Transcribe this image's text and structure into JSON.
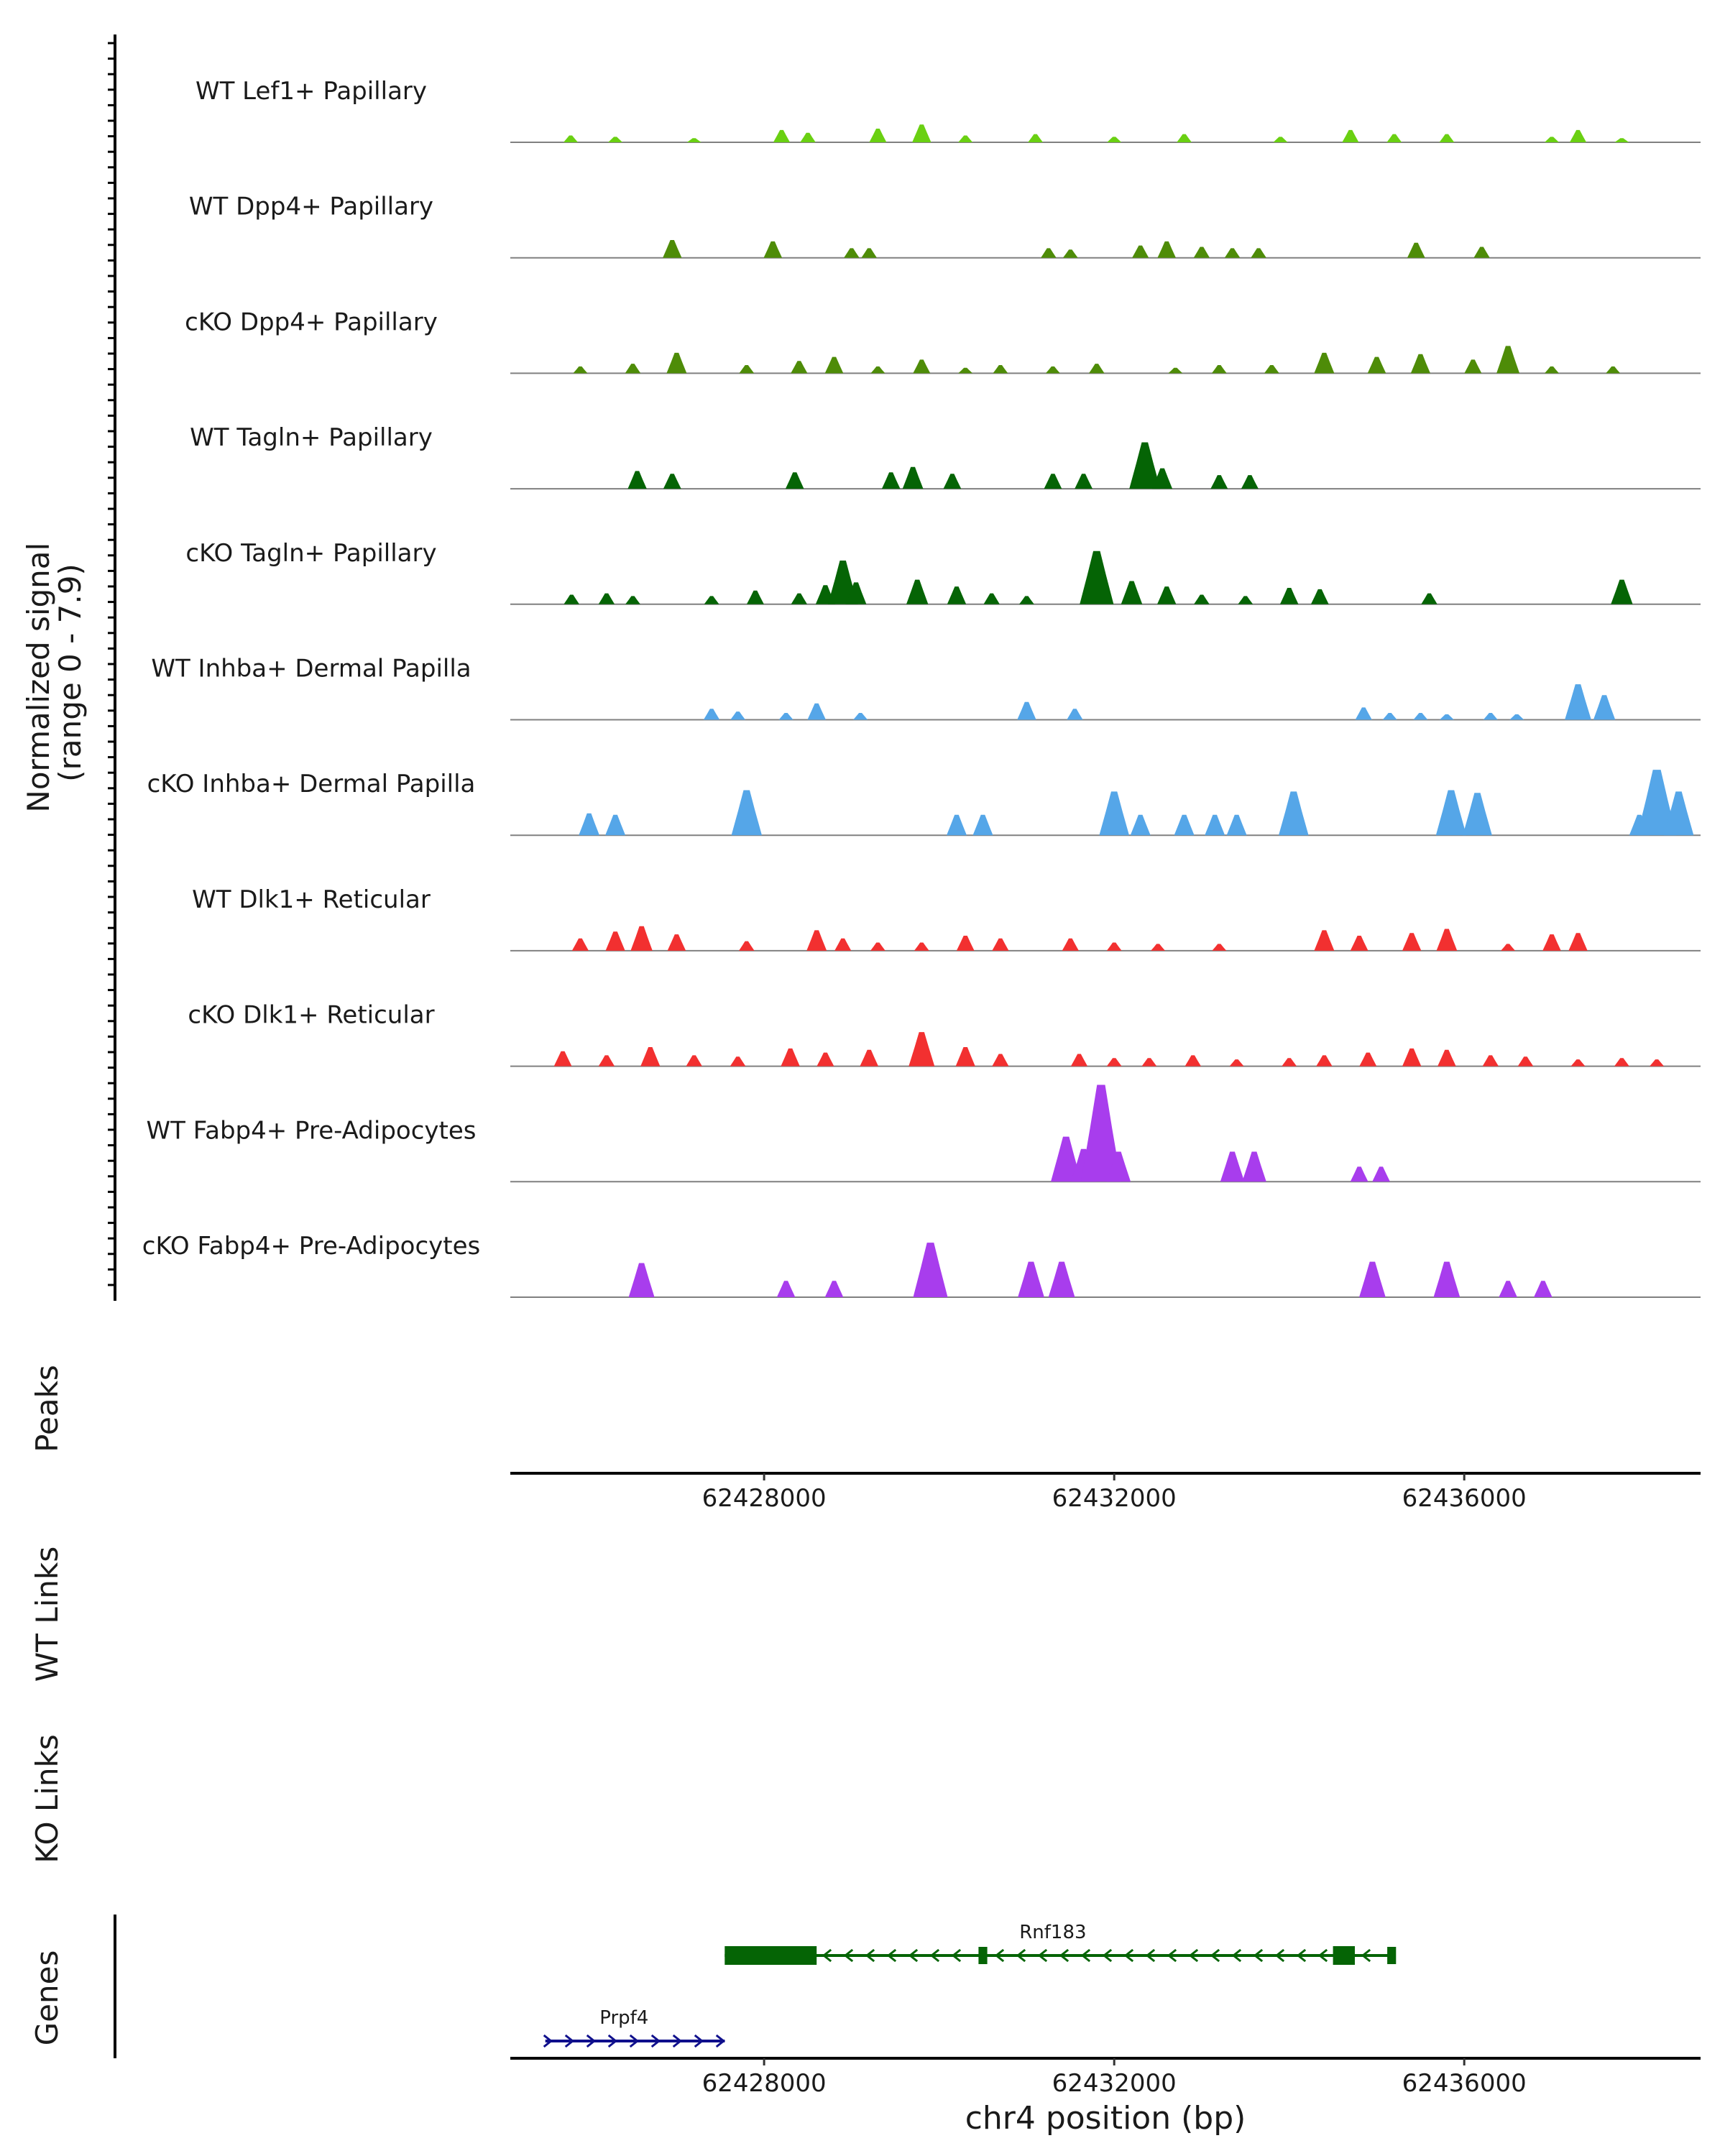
{
  "chart_data": {
    "type": "area",
    "title": "",
    "ylabel": "Normalized signal\n(range 0 - 7.9)",
    "ylabel_lines": [
      "Normalized signal",
      "(range 0 - 7.9)"
    ],
    "ylim": [
      0,
      7.9
    ],
    "xlabel": "chr4 position (bp)",
    "xlim": [
      62425100,
      62438700
    ],
    "x_ticks": [
      62428000,
      62432000,
      62436000
    ],
    "x_tick_labels": [
      "62428000",
      "62432000",
      "62436000"
    ],
    "colors": {
      "lef1": "#6ad012",
      "dpp4": "#4e8c08",
      "tagln": "#056405",
      "inhba": "#55a6e8",
      "dlk1": "#f23030",
      "fabp4": "#a83ded",
      "rnf183": "#056405",
      "prpf4": "#0f0f8c",
      "baseline": "#808080",
      "axis": "#000000"
    },
    "tracks": [
      {
        "label": "WT Lef1+ Papillary",
        "color": "#6ad012",
        "peaks": [
          [
            62425790,
            0.5
          ],
          [
            62426300,
            0.4
          ],
          [
            62427200,
            0.3
          ],
          [
            62428200,
            0.9
          ],
          [
            62428500,
            0.7
          ],
          [
            62429300,
            1.0
          ],
          [
            62429800,
            1.3
          ],
          [
            62430300,
            0.5
          ],
          [
            62431100,
            0.6
          ],
          [
            62432000,
            0.4
          ],
          [
            62432800,
            0.6
          ],
          [
            62433900,
            0.4
          ],
          [
            62434700,
            0.9
          ],
          [
            62435200,
            0.6
          ],
          [
            62435800,
            0.6
          ],
          [
            62437000,
            0.4
          ],
          [
            62437300,
            0.9
          ],
          [
            62437800,
            0.3
          ]
        ]
      },
      {
        "label": "WT Dpp4+ Papillary",
        "color": "#4e8c08",
        "peaks": [
          [
            62426950,
            1.3
          ],
          [
            62428100,
            1.2
          ],
          [
            62429000,
            0.7
          ],
          [
            62429200,
            0.7
          ],
          [
            62431250,
            0.7
          ],
          [
            62431500,
            0.6
          ],
          [
            62432300,
            0.9
          ],
          [
            62432600,
            1.2
          ],
          [
            62433000,
            0.8
          ],
          [
            62433350,
            0.7
          ],
          [
            62433650,
            0.7
          ],
          [
            62435450,
            1.1
          ],
          [
            62436200,
            0.8
          ]
        ]
      },
      {
        "label": "cKO Dpp4+ Papillary",
        "color": "#4e8c08",
        "peaks": [
          [
            62425900,
            0.5
          ],
          [
            62426500,
            0.7
          ],
          [
            62427000,
            1.5
          ],
          [
            62427800,
            0.6
          ],
          [
            62428400,
            0.9
          ],
          [
            62428800,
            1.2
          ],
          [
            62429300,
            0.5
          ],
          [
            62429800,
            1.0
          ],
          [
            62430300,
            0.4
          ],
          [
            62430700,
            0.6
          ],
          [
            62431300,
            0.5
          ],
          [
            62431800,
            0.7
          ],
          [
            62432700,
            0.4
          ],
          [
            62433200,
            0.6
          ],
          [
            62433800,
            0.6
          ],
          [
            62434400,
            1.5
          ],
          [
            62435000,
            1.2
          ],
          [
            62435500,
            1.4
          ],
          [
            62436100,
            1.0
          ],
          [
            62436500,
            2.0
          ],
          [
            62437000,
            0.5
          ],
          [
            62437700,
            0.5
          ]
        ]
      },
      {
        "label": "WT Tagln+ Papillary",
        "color": "#056405",
        "peaks": [
          [
            62426550,
            1.3
          ],
          [
            62426950,
            1.1
          ],
          [
            62428350,
            1.2
          ],
          [
            62429450,
            1.2
          ],
          [
            62429700,
            1.6
          ],
          [
            62430150,
            1.1
          ],
          [
            62431300,
            1.1
          ],
          [
            62431650,
            1.1
          ],
          [
            62432350,
            3.4
          ],
          [
            62432550,
            1.5
          ],
          [
            62433200,
            1.0
          ],
          [
            62433550,
            1.0
          ]
        ]
      },
      {
        "label": "cKO Tagln+ Papillary",
        "color": "#056405",
        "peaks": [
          [
            62425800,
            0.7
          ],
          [
            62426200,
            0.8
          ],
          [
            62426500,
            0.6
          ],
          [
            62427400,
            0.6
          ],
          [
            62427900,
            1.0
          ],
          [
            62428400,
            0.8
          ],
          [
            62428700,
            1.4
          ],
          [
            62428900,
            3.2
          ],
          [
            62429050,
            1.6
          ],
          [
            62429750,
            1.8
          ],
          [
            62430200,
            1.3
          ],
          [
            62430600,
            0.8
          ],
          [
            62431000,
            0.6
          ],
          [
            62431800,
            3.9
          ],
          [
            62432200,
            1.7
          ],
          [
            62432600,
            1.3
          ],
          [
            62433000,
            0.7
          ],
          [
            62433500,
            0.6
          ],
          [
            62434000,
            1.2
          ],
          [
            62434350,
            1.1
          ],
          [
            62435600,
            0.8
          ],
          [
            62437800,
            1.8
          ]
        ]
      },
      {
        "label": "WT Inhba+ Dermal Papilla",
        "color": "#55a6e8",
        "peaks": [
          [
            62427400,
            0.8
          ],
          [
            62427700,
            0.6
          ],
          [
            62428250,
            0.5
          ],
          [
            62428600,
            1.2
          ],
          [
            62429100,
            0.5
          ],
          [
            62431000,
            1.3
          ],
          [
            62431550,
            0.8
          ],
          [
            62434850,
            0.9
          ],
          [
            62435150,
            0.5
          ],
          [
            62435500,
            0.5
          ],
          [
            62435800,
            0.4
          ],
          [
            62436300,
            0.5
          ],
          [
            62436600,
            0.4
          ],
          [
            62437300,
            2.6
          ],
          [
            62437600,
            1.8
          ]
        ]
      },
      {
        "label": "cKO Inhba+ Dermal Papilla",
        "color": "#55a6e8",
        "peaks": [
          [
            62426000,
            1.6
          ],
          [
            62426300,
            1.5
          ],
          [
            62427800,
            3.3
          ],
          [
            62430200,
            1.5
          ],
          [
            62430500,
            1.5
          ],
          [
            62432000,
            3.2
          ],
          [
            62432300,
            1.5
          ],
          [
            62432800,
            1.5
          ],
          [
            62433150,
            1.5
          ],
          [
            62433400,
            1.5
          ],
          [
            62434050,
            3.2
          ],
          [
            62435850,
            3.3
          ],
          [
            62436150,
            3.1
          ],
          [
            62438000,
            1.5
          ],
          [
            62438200,
            4.8
          ],
          [
            62438450,
            3.2
          ]
        ]
      },
      {
        "label": "WT Dlk1+ Reticular",
        "color": "#f23030",
        "peaks": [
          [
            62425900,
            0.9
          ],
          [
            62426300,
            1.4
          ],
          [
            62426600,
            1.8
          ],
          [
            62427000,
            1.2
          ],
          [
            62427800,
            0.7
          ],
          [
            62428600,
            1.5
          ],
          [
            62428900,
            0.9
          ],
          [
            62429300,
            0.6
          ],
          [
            62429800,
            0.6
          ],
          [
            62430300,
            1.1
          ],
          [
            62430700,
            0.9
          ],
          [
            62431500,
            0.9
          ],
          [
            62432000,
            0.6
          ],
          [
            62432500,
            0.5
          ],
          [
            62433200,
            0.5
          ],
          [
            62434400,
            1.5
          ],
          [
            62434800,
            1.1
          ],
          [
            62435400,
            1.3
          ],
          [
            62435800,
            1.6
          ],
          [
            62436500,
            0.5
          ],
          [
            62437000,
            1.2
          ],
          [
            62437300,
            1.3
          ]
        ]
      },
      {
        "label": "cKO Dlk1+ Reticular",
        "color": "#f23030",
        "peaks": [
          [
            62425700,
            1.1
          ],
          [
            62426200,
            0.8
          ],
          [
            62426700,
            1.4
          ],
          [
            62427200,
            0.8
          ],
          [
            62427700,
            0.7
          ],
          [
            62428300,
            1.3
          ],
          [
            62428700,
            1.0
          ],
          [
            62429200,
            1.2
          ],
          [
            62429800,
            2.5
          ],
          [
            62430300,
            1.4
          ],
          [
            62430700,
            0.9
          ],
          [
            62431600,
            0.9
          ],
          [
            62432000,
            0.6
          ],
          [
            62432400,
            0.6
          ],
          [
            62432900,
            0.8
          ],
          [
            62433400,
            0.5
          ],
          [
            62434000,
            0.6
          ],
          [
            62434400,
            0.8
          ],
          [
            62434900,
            1.0
          ],
          [
            62435400,
            1.3
          ],
          [
            62435800,
            1.2
          ],
          [
            62436300,
            0.8
          ],
          [
            62436700,
            0.7
          ],
          [
            62437300,
            0.5
          ],
          [
            62437800,
            0.6
          ],
          [
            62438200,
            0.5
          ]
        ]
      },
      {
        "label": "WT Fabp4+ Pre-Adipocytes",
        "color": "#a83ded",
        "peaks": [
          [
            62431450,
            3.3
          ],
          [
            62431650,
            2.4
          ],
          [
            62431850,
            7.1
          ],
          [
            62432050,
            2.2
          ],
          [
            62433350,
            2.2
          ],
          [
            62433600,
            2.2
          ],
          [
            62434800,
            1.1
          ],
          [
            62435050,
            1.1
          ]
        ]
      },
      {
        "label": "cKO Fabp4+ Pre-Adipocytes",
        "color": "#a83ded",
        "peaks": [
          [
            62426600,
            2.5
          ],
          [
            62428250,
            1.2
          ],
          [
            62428800,
            1.2
          ],
          [
            62429900,
            4.0
          ],
          [
            62431050,
            2.6
          ],
          [
            62431400,
            2.6
          ],
          [
            62434950,
            2.6
          ],
          [
            62435800,
            2.6
          ],
          [
            62436500,
            1.2
          ],
          [
            62436900,
            1.2
          ]
        ]
      }
    ],
    "rows": [
      {
        "label": "Peaks"
      },
      {
        "label": "WT Links"
      },
      {
        "label": "KO Links"
      },
      {
        "label": "Genes"
      }
    ],
    "genes": [
      {
        "name": "Rnf183",
        "strand": "-",
        "start": 62427550,
        "end": 62435200,
        "color": "#056405",
        "exons": [
          [
            62427550,
            62428600
          ],
          [
            62430450,
            62430550
          ],
          [
            62434500,
            62434750
          ],
          [
            62435120,
            62435220
          ]
        ]
      },
      {
        "name": "Prpf4",
        "strand": "+",
        "start": 62425500,
        "end": 62427550,
        "color": "#0f0f8c",
        "exons": []
      }
    ]
  }
}
